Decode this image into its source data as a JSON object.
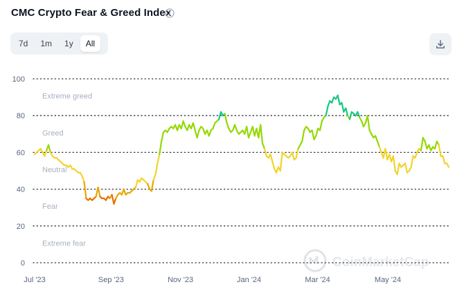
{
  "header": {
    "title": "CMC Crypto Fear & Greed Index",
    "info_icon": "info-icon",
    "download_icon": "download-icon"
  },
  "range_tabs": [
    {
      "label": "7d",
      "active": false
    },
    {
      "label": "1m",
      "active": false
    },
    {
      "label": "1y",
      "active": false
    },
    {
      "label": "All",
      "active": true
    }
  ],
  "watermark": "CoinMarketCap",
  "colors": {
    "extreme_fear": "#e76f00",
    "fear": "#e7a600",
    "neutral": "#f2d32b",
    "greed": "#93d900",
    "extreme_greed": "#16c784"
  },
  "chart_data": {
    "type": "line",
    "title": "CMC Crypto Fear & Greed Index",
    "xlabel": "",
    "ylabel": "",
    "ylim": [
      0,
      100
    ],
    "yticks": [
      0,
      20,
      40,
      60,
      80,
      100
    ],
    "xtick_labels": [
      "Jul '23",
      "Sep '23",
      "Nov '23",
      "Jan '24",
      "Mar '24",
      "May '24"
    ],
    "xlim_index": [
      0,
      100
    ],
    "xtick_index": [
      0,
      18.4,
      35.1,
      51.6,
      68.1,
      85.0
    ],
    "zones": [
      {
        "label": "Extreme greed",
        "value": 90
      },
      {
        "label": "Greed",
        "value": 70
      },
      {
        "label": "Neutral",
        "value": 50
      },
      {
        "label": "Fear",
        "value": 30
      },
      {
        "label": "Extreme fear",
        "value": 10
      }
    ],
    "grid": true,
    "legend": "none",
    "series": [
      {
        "values": [
          59,
          60,
          61,
          62,
          60,
          58,
          61,
          64,
          60,
          58,
          57,
          57,
          56,
          55,
          54,
          53,
          53,
          52,
          53,
          51,
          51,
          50,
          49,
          49,
          47,
          44,
          35,
          34,
          35,
          34,
          35,
          36,
          41,
          36,
          35,
          35,
          34,
          36,
          35,
          37,
          32,
          35,
          37,
          38,
          37,
          40,
          37,
          38,
          38,
          39,
          40,
          41,
          45,
          44,
          46,
          45,
          44,
          43,
          40,
          39,
          45,
          48,
          54,
          59,
          66,
          71,
          72,
          71,
          73,
          74,
          73,
          75,
          72,
          75,
          73,
          77,
          74,
          72,
          75,
          73,
          76,
          72,
          68,
          72,
          74,
          73,
          70,
          72,
          69,
          72,
          73,
          76,
          77,
          78,
          82,
          80,
          81,
          76,
          73,
          71,
          72,
          75,
          72,
          70,
          71,
          72,
          70,
          74,
          68,
          71,
          74,
          69,
          73,
          68,
          75,
          65,
          62,
          58,
          57,
          59,
          55,
          51,
          49,
          52,
          50,
          60,
          59,
          58,
          57,
          58,
          60,
          56,
          57,
          62,
          64,
          66,
          72,
          74,
          73,
          71,
          72,
          67,
          69,
          73,
          72,
          77,
          79,
          80,
          85,
          88,
          87,
          90,
          89,
          91,
          86,
          87,
          82,
          84,
          80,
          78,
          82,
          81,
          80,
          82,
          79,
          77,
          74,
          76,
          80,
          72,
          70,
          68,
          69,
          66,
          63,
          60,
          57,
          62,
          56,
          59,
          55,
          58,
          50,
          48,
          54,
          52,
          53,
          54,
          49,
          50,
          52,
          58,
          57,
          60,
          62,
          61,
          68,
          66,
          62,
          64,
          61,
          63,
          62,
          66,
          64,
          58,
          58,
          54,
          54,
          52
        ]
      }
    ]
  }
}
